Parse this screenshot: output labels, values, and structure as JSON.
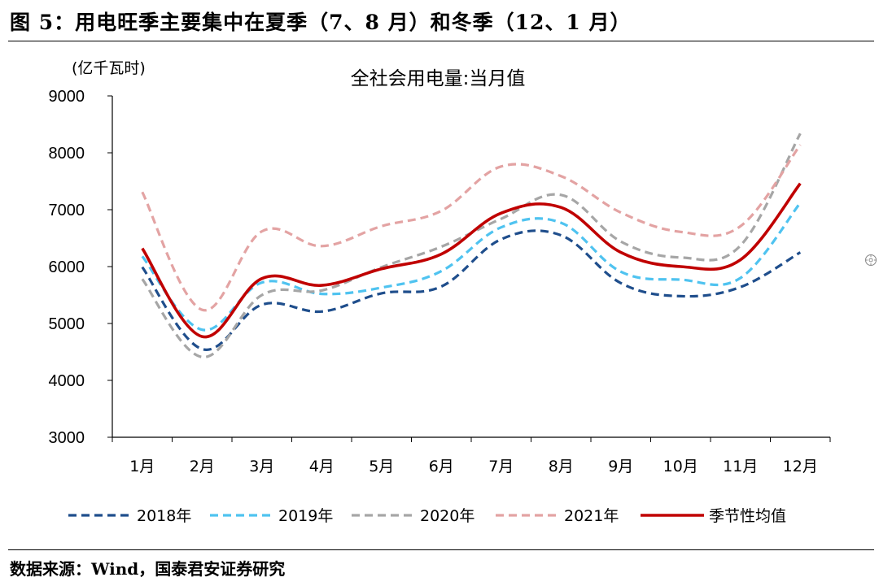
{
  "figure": {
    "title": "图 5：用电旺季主要集中在夏季（7、8 月）和冬季（12、1 月）",
    "source": "数据来源：Wind，国泰君安证券研究"
  },
  "chart_data": {
    "type": "line",
    "title": "全社会用电量:当月值",
    "unit_label": "(亿千瓦时)",
    "xlabel": "",
    "ylabel": "(亿千瓦时)",
    "ylim": [
      3000,
      9000
    ],
    "yticks": [
      3000,
      4000,
      5000,
      6000,
      7000,
      8000,
      9000
    ],
    "categories": [
      "1月",
      "2月",
      "3月",
      "4月",
      "5月",
      "6月",
      "7月",
      "8月",
      "9月",
      "10月",
      "11月",
      "12月"
    ],
    "grid": false,
    "legend_position": "bottom",
    "series": [
      {
        "name": "2018年",
        "color": "#1f4e8c",
        "dash": "dashed",
        "values": [
          5990,
          4550,
          5330,
          5210,
          5530,
          5650,
          6480,
          6550,
          5710,
          5480,
          5640,
          6250
        ]
      },
      {
        "name": "2019年",
        "color": "#4fc3f0",
        "dash": "dashed",
        "values": [
          6180,
          4890,
          5720,
          5520,
          5630,
          5920,
          6690,
          6770,
          5910,
          5770,
          5800,
          7120
        ]
      },
      {
        "name": "2020年",
        "color": "#a6a6a6",
        "dash": "dashed",
        "values": [
          5780,
          4410,
          5500,
          5580,
          5990,
          6350,
          6840,
          7260,
          6440,
          6160,
          6370,
          8340
        ]
      },
      {
        "name": "2021年",
        "color": "#e3a3a3",
        "dash": "dashed",
        "values": [
          7310,
          5240,
          6620,
          6360,
          6710,
          6980,
          7760,
          7590,
          6950,
          6610,
          6710,
          8140
        ]
      },
      {
        "name": "季节性均值",
        "color": "#c00000",
        "dash": "solid",
        "values": [
          6320,
          4770,
          5790,
          5670,
          5960,
          6220,
          6940,
          7040,
          6250,
          6000,
          6120,
          7460
        ]
      }
    ]
  }
}
